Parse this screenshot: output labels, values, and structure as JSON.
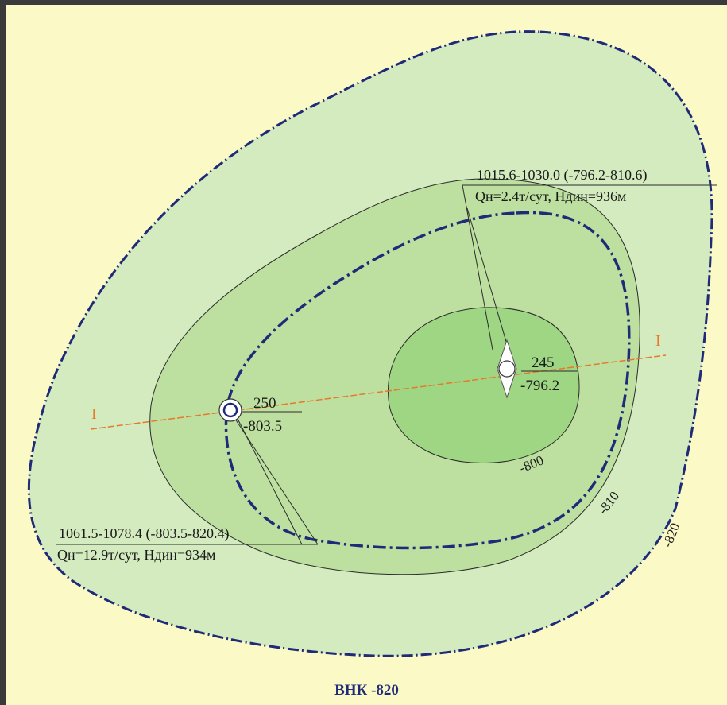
{
  "map": {
    "colors": {
      "background": "#fbf9c6",
      "zone_820": "#d3ebbf",
      "zone_810": "#bde0a0",
      "zone_800": "#9fd684",
      "contour": "#2b2b2b",
      "owc_line": "#1f2a78",
      "section_line": "#e8782a"
    },
    "contours": [
      {
        "value": "-800",
        "label": "-800"
      },
      {
        "value": "-810",
        "label": "-810"
      },
      {
        "value": "-820",
        "label": "-820"
      }
    ],
    "section": {
      "left_label": "I",
      "right_label": "I"
    },
    "wells": [
      {
        "number": "245",
        "elevation": "-796.2",
        "interval": "1015.6-1030.0 (-796.2-810.6)",
        "production": "Qн=2.4т/сут, Hдин=936м"
      },
      {
        "number": "250",
        "elevation": "-803.5",
        "interval": "1061.5-1078.4 (-803.5-820.4)",
        "production": "Qн=12.9т/сут, Hдин=934м"
      }
    ],
    "caption": "ВНК -820"
  }
}
